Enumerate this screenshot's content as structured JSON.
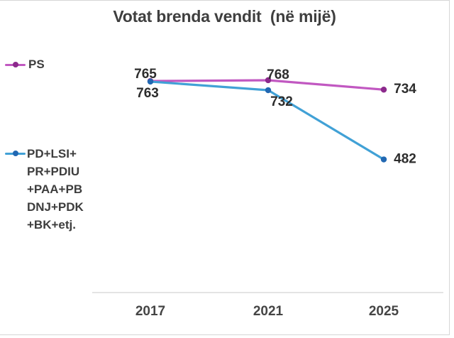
{
  "title": "Votat brenda vendit  (në mijë)",
  "legend": {
    "ps": {
      "label": "PS"
    },
    "opposition": {
      "label_lines": [
        "PD+LSI+",
        "PR+PDIU",
        "+PAA+PB",
        "DNJ+PDK",
        "+BK+etj."
      ]
    }
  },
  "chart_data": {
    "type": "line",
    "title": "Votat brenda vendit (në mijë)",
    "categories": [
      "2017",
      "2021",
      "2025"
    ],
    "series": [
      {
        "name": "PS",
        "values": [
          765,
          768,
          734
        ],
        "line_color": "#c158c1",
        "marker_color": "#8c2a8c"
      },
      {
        "name": "PD+LSI+PR+PDIU+PAA+PBDNJ+PDK+BK+etj.",
        "values": [
          763,
          732,
          482
        ],
        "line_color": "#41a1d6",
        "marker_color": "#2268b2"
      }
    ],
    "ylim": [
      0,
      800
    ],
    "grid": false,
    "legend_position": "left",
    "data_labels": true,
    "axis_line_color": "#dcdcdc",
    "xlabel": "",
    "ylabel": ""
  }
}
